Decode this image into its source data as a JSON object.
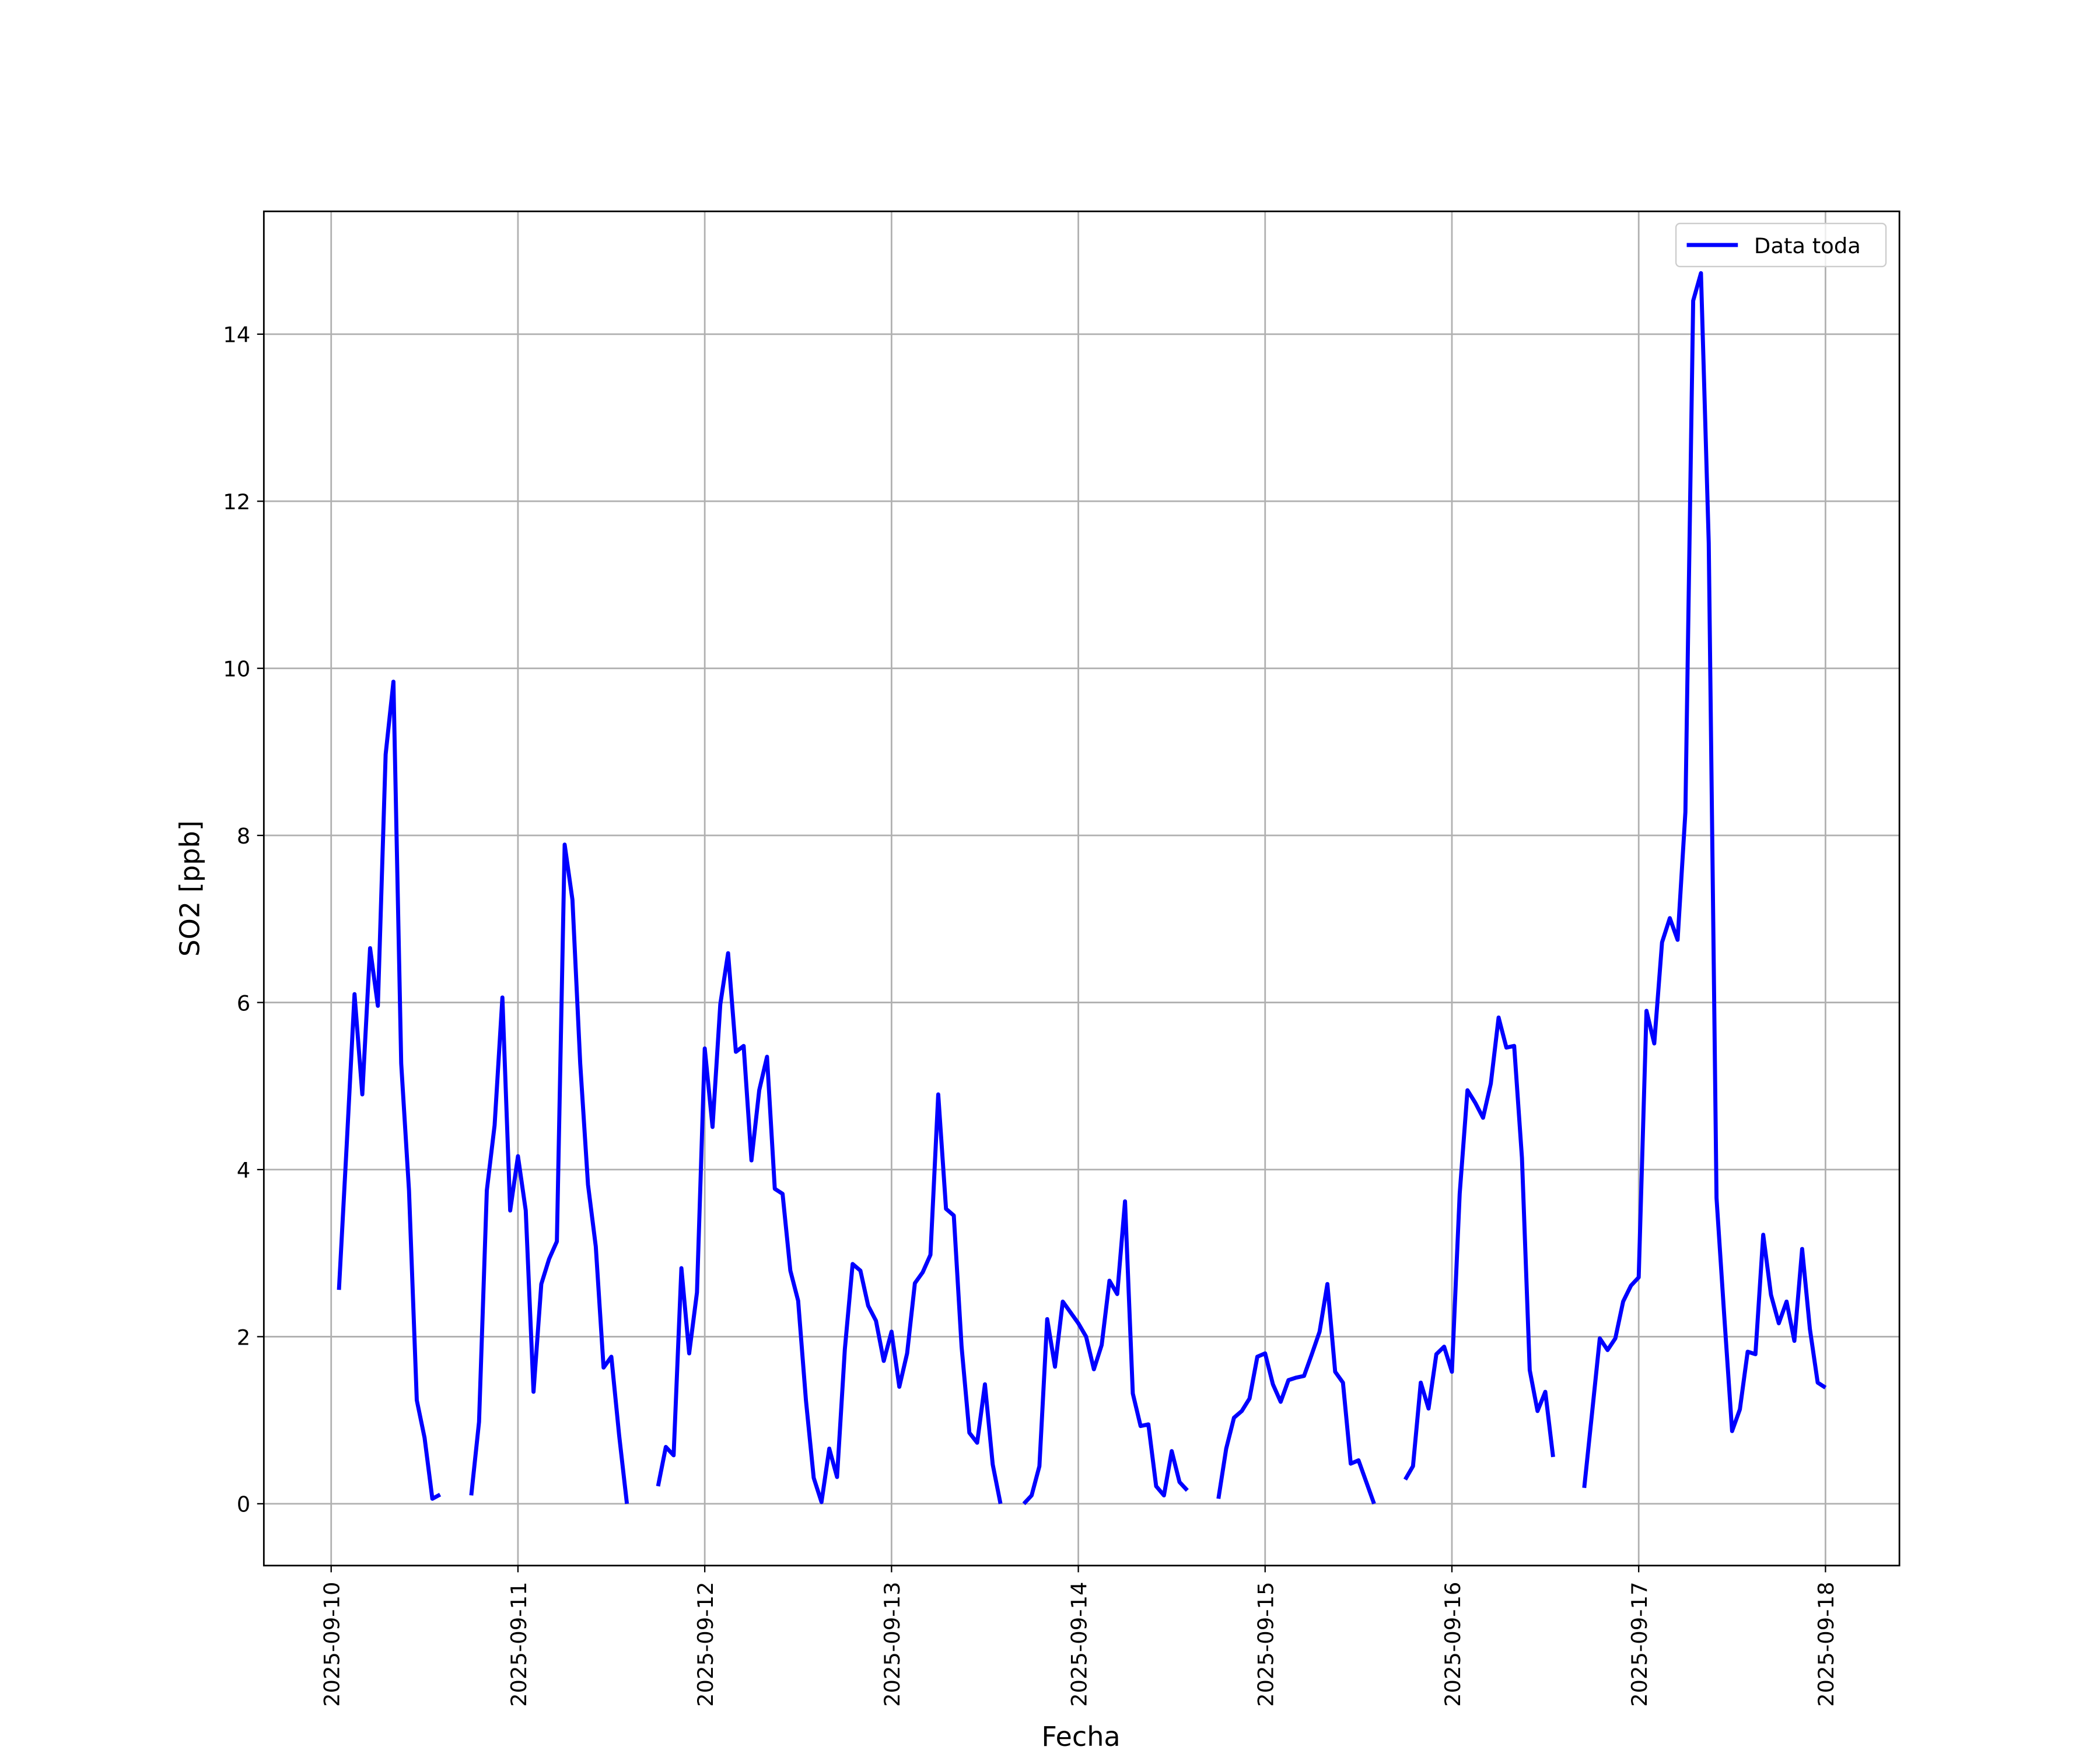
{
  "chart_data": {
    "type": "line",
    "xlabel": "Fecha",
    "ylabel": "SO2 [ppb]",
    "x": [
      "2025-09-10 01:00",
      "2025-09-10 02:00",
      "2025-09-10 03:00",
      "2025-09-10 04:00",
      "2025-09-10 05:00",
      "2025-09-10 06:00",
      "2025-09-10 07:00",
      "2025-09-10 08:00",
      "2025-09-10 09:00",
      "2025-09-10 10:00",
      "2025-09-10 11:00",
      "2025-09-10 12:00",
      "2025-09-10 13:00",
      "2025-09-10 14:00",
      "2025-09-10 15:00",
      "2025-09-10 16:00",
      "2025-09-10 17:00",
      "2025-09-10 18:00",
      "2025-09-10 19:00",
      "2025-09-10 20:00",
      "2025-09-10 21:00",
      "2025-09-10 22:00",
      "2025-09-10 23:00",
      "2025-09-11 00:00",
      "2025-09-11 01:00",
      "2025-09-11 02:00",
      "2025-09-11 03:00",
      "2025-09-11 04:00",
      "2025-09-11 05:00",
      "2025-09-11 06:00",
      "2025-09-11 07:00",
      "2025-09-11 08:00",
      "2025-09-11 09:00",
      "2025-09-11 10:00",
      "2025-09-11 11:00",
      "2025-09-11 12:00",
      "2025-09-11 13:00",
      "2025-09-11 14:00",
      "2025-09-11 15:00",
      "2025-09-11 16:00",
      "2025-09-11 17:00",
      "2025-09-11 18:00",
      "2025-09-11 19:00",
      "2025-09-11 20:00",
      "2025-09-11 21:00",
      "2025-09-11 22:00",
      "2025-09-11 23:00",
      "2025-09-12 00:00",
      "2025-09-12 01:00",
      "2025-09-12 02:00",
      "2025-09-12 03:00",
      "2025-09-12 04:00",
      "2025-09-12 05:00",
      "2025-09-12 06:00",
      "2025-09-12 07:00",
      "2025-09-12 08:00",
      "2025-09-12 09:00",
      "2025-09-12 10:00",
      "2025-09-12 11:00",
      "2025-09-12 12:00",
      "2025-09-12 13:00",
      "2025-09-12 14:00",
      "2025-09-12 15:00",
      "2025-09-12 16:00",
      "2025-09-12 17:00",
      "2025-09-12 18:00",
      "2025-09-12 19:00",
      "2025-09-12 20:00",
      "2025-09-12 21:00",
      "2025-09-12 22:00",
      "2025-09-12 23:00",
      "2025-09-13 00:00",
      "2025-09-13 01:00",
      "2025-09-13 02:00",
      "2025-09-13 03:00",
      "2025-09-13 04:00",
      "2025-09-13 05:00",
      "2025-09-13 06:00",
      "2025-09-13 07:00",
      "2025-09-13 08:00",
      "2025-09-13 09:00",
      "2025-09-13 10:00",
      "2025-09-13 11:00",
      "2025-09-13 12:00",
      "2025-09-13 13:00",
      "2025-09-13 14:00",
      "2025-09-13 15:00",
      "2025-09-13 16:00",
      "2025-09-13 17:00",
      "2025-09-13 18:00",
      "2025-09-13 19:00",
      "2025-09-13 20:00",
      "2025-09-13 21:00",
      "2025-09-13 22:00",
      "2025-09-13 23:00",
      "2025-09-14 00:00",
      "2025-09-14 01:00",
      "2025-09-14 02:00",
      "2025-09-14 03:00",
      "2025-09-14 04:00",
      "2025-09-14 05:00",
      "2025-09-14 06:00",
      "2025-09-14 07:00",
      "2025-09-14 08:00",
      "2025-09-14 09:00",
      "2025-09-14 10:00",
      "2025-09-14 11:00",
      "2025-09-14 12:00",
      "2025-09-14 13:00",
      "2025-09-14 14:00",
      "2025-09-14 15:00",
      "2025-09-14 16:00",
      "2025-09-14 17:00",
      "2025-09-14 18:00",
      "2025-09-14 19:00",
      "2025-09-14 20:00",
      "2025-09-14 21:00",
      "2025-09-14 22:00",
      "2025-09-14 23:00",
      "2025-09-15 00:00",
      "2025-09-15 01:00",
      "2025-09-15 02:00",
      "2025-09-15 03:00",
      "2025-09-15 04:00",
      "2025-09-15 05:00",
      "2025-09-15 06:00",
      "2025-09-15 07:00",
      "2025-09-15 08:00",
      "2025-09-15 09:00",
      "2025-09-15 10:00",
      "2025-09-15 11:00",
      "2025-09-15 12:00",
      "2025-09-15 13:00",
      "2025-09-15 14:00",
      "2025-09-15 15:00",
      "2025-09-15 16:00",
      "2025-09-15 17:00",
      "2025-09-15 18:00",
      "2025-09-15 19:00",
      "2025-09-15 20:00",
      "2025-09-15 21:00",
      "2025-09-15 22:00",
      "2025-09-15 23:00",
      "2025-09-16 00:00",
      "2025-09-16 01:00",
      "2025-09-16 02:00",
      "2025-09-16 03:00",
      "2025-09-16 04:00",
      "2025-09-16 05:00",
      "2025-09-16 06:00",
      "2025-09-16 07:00",
      "2025-09-16 08:00",
      "2025-09-16 09:00",
      "2025-09-16 10:00",
      "2025-09-16 11:00",
      "2025-09-16 12:00",
      "2025-09-16 13:00",
      "2025-09-16 14:00",
      "2025-09-16 15:00",
      "2025-09-16 16:00",
      "2025-09-16 17:00",
      "2025-09-16 18:00",
      "2025-09-16 19:00",
      "2025-09-16 20:00",
      "2025-09-16 21:00",
      "2025-09-16 22:00",
      "2025-09-16 23:00",
      "2025-09-17 00:00",
      "2025-09-17 01:00",
      "2025-09-17 02:00",
      "2025-09-17 03:00",
      "2025-09-17 04:00",
      "2025-09-17 05:00",
      "2025-09-17 06:00",
      "2025-09-17 07:00",
      "2025-09-17 08:00",
      "2025-09-17 09:00",
      "2025-09-17 10:00",
      "2025-09-17 11:00",
      "2025-09-17 12:00",
      "2025-09-17 13:00",
      "2025-09-17 14:00",
      "2025-09-17 15:00",
      "2025-09-17 16:00",
      "2025-09-17 17:00",
      "2025-09-17 18:00",
      "2025-09-17 19:00",
      "2025-09-17 20:00",
      "2025-09-17 21:00",
      "2025-09-17 22:00",
      "2025-09-17 23:00",
      "2025-09-18 00:00"
    ],
    "series": [
      {
        "name": "Data toda",
        "color": "#0000ff",
        "values": [
          2.56,
          4.3,
          6.1,
          4.9,
          6.65,
          5.96,
          8.97,
          9.84,
          5.27,
          3.75,
          1.24,
          0.79,
          0.06,
          0.11,
          null,
          null,
          null,
          0.1,
          0.98,
          3.75,
          4.53,
          6.06,
          3.51,
          4.16,
          3.51,
          1.34,
          2.63,
          2.93,
          3.14,
          7.89,
          7.23,
          5.27,
          3.82,
          3.08,
          1.63,
          1.76,
          0.82,
          0,
          null,
          null,
          null,
          0.21,
          0.68,
          0.58,
          2.82,
          1.8,
          2.53,
          5.45,
          4.51,
          5.98,
          6.59,
          5.41,
          5.48,
          4.11,
          4.95,
          5.35,
          3.77,
          3.71,
          2.79,
          2.43,
          1.24,
          0.31,
          0.02,
          0.66,
          0.32,
          1.85,
          2.87,
          2.79,
          2.37,
          2.19,
          1.71,
          2.06,
          1.4,
          1.8,
          2.64,
          2.77,
          2.98,
          4.9,
          3.53,
          3.45,
          1.88,
          0.85,
          0.73,
          1.43,
          0.47,
          0,
          null,
          null,
          0,
          0.1,
          0.45,
          2.21,
          1.64,
          2.42,
          2.29,
          2.16,
          2.0,
          1.61,
          1.9,
          2.67,
          2.51,
          3.62,
          1.32,
          0.93,
          0.95,
          0.21,
          0.1,
          0.63,
          0.26,
          0.16,
          null,
          null,
          null,
          0.06,
          0.66,
          1.03,
          1.11,
          1.26,
          1.76,
          1.8,
          1.43,
          1.22,
          1.48,
          1.51,
          1.53,
          1.79,
          2.06,
          2.63,
          1.58,
          1.45,
          0.48,
          0.52,
          0.26,
          0,
          null,
          null,
          null,
          0.29,
          0.45,
          1.45,
          1.14,
          1.79,
          1.88,
          1.58,
          3.71,
          4.95,
          4.8,
          4.62,
          5.03,
          5.82,
          5.46,
          5.48,
          4.14,
          1.6,
          1.11,
          1.34,
          0.56,
          null,
          null,
          null,
          0.19,
          1.08,
          1.98,
          1.84,
          1.98,
          2.42,
          2.61,
          2.71,
          5.9,
          5.51,
          6.72,
          7.01,
          6.75,
          8.28,
          14.4,
          14.73,
          11.5,
          3.66,
          2.24,
          0.87,
          1.13,
          1.82,
          1.79,
          3.22,
          2.5,
          2.16,
          2.42,
          1.95,
          3.05,
          2.09,
          1.45,
          1.39
        ]
      }
    ],
    "xlim": [
      "2025-09-09 15:21",
      "2025-09-18 09:30"
    ],
    "xticks": [
      "2025-09-10",
      "2025-09-11",
      "2025-09-12",
      "2025-09-13",
      "2025-09-14",
      "2025-09-15",
      "2025-09-16",
      "2025-09-17",
      "2025-09-18"
    ],
    "ylim": [
      -0.74,
      15.47
    ],
    "yticks": [
      0,
      2,
      4,
      6,
      8,
      10,
      12,
      14
    ],
    "grid": true,
    "legend": "upper right"
  }
}
